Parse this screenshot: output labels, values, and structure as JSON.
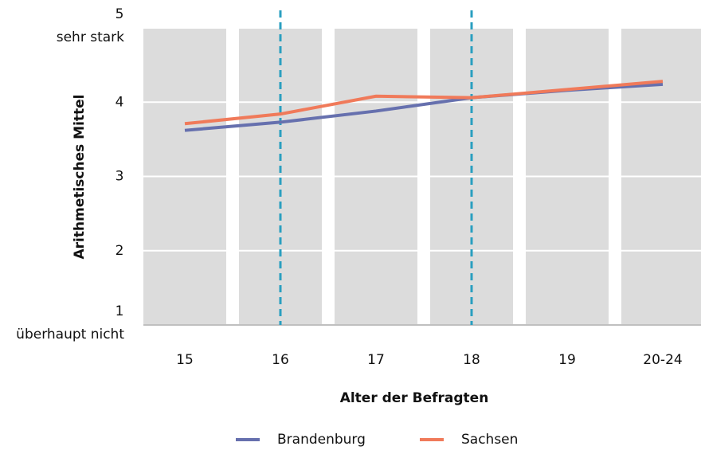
{
  "chart_data": {
    "type": "line",
    "categories": [
      "15",
      "16",
      "17",
      "18",
      "19",
      "20-24"
    ],
    "series": [
      {
        "name": "Brandenburg",
        "color": "#6670ae",
        "values": [
          3.62,
          3.73,
          3.88,
          4.06,
          4.16,
          4.24
        ]
      },
      {
        "name": "Sachsen",
        "color": "#f07a5a",
        "values": [
          3.71,
          3.84,
          4.08,
          4.06,
          4.17,
          4.28
        ]
      }
    ],
    "ylim": [
      1,
      5
    ],
    "yticks": [
      1,
      2,
      3,
      4,
      5
    ],
    "ylabel": "Arithmetisches Mittel",
    "xlabel": "Alter der Befragten",
    "annotations": [
      {
        "text": "sehr stark",
        "y": 5
      },
      {
        "text": "überhaupt nicht",
        "y": 1
      }
    ],
    "reference_lines": [
      {
        "x": "16",
        "color": "#2a9fc0"
      },
      {
        "x": "18",
        "color": "#2a9fc0"
      }
    ],
    "grid": true,
    "legend": "bottom"
  }
}
